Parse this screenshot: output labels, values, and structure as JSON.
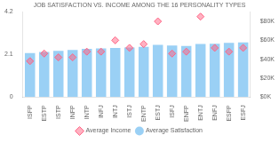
{
  "chart_data": {
    "type": "bar",
    "title": "JOB SATISFACTION VS. INCOME AMONG THE 16 PERSONALITY TYPES",
    "categories": [
      "ISFP",
      "ESTP",
      "ISTP",
      "INFP",
      "INTP",
      "INFJ",
      "INTJ",
      "ISTJ",
      "ENTP",
      "ESTJ",
      "ISFJ",
      "ENFP",
      "ENTJ",
      "ENFJ",
      "ESFP",
      "ESFJ"
    ],
    "series": [
      {
        "name": "Average Satisfaction",
        "type": "bar",
        "values": [
          2.17,
          2.22,
          2.28,
          2.32,
          2.38,
          2.4,
          2.42,
          2.44,
          2.48,
          2.58,
          2.54,
          2.52,
          2.62,
          2.63,
          2.67,
          2.7
        ]
      },
      {
        "name": "Average Income",
        "type": "scatter",
        "marker": "diamond",
        "axis": "y2",
        "values": [
          38000,
          46000,
          42000,
          42000,
          48000,
          48000,
          60000,
          52000,
          56000,
          80000,
          46000,
          48000,
          85000,
          52000,
          48000,
          52000
        ]
      }
    ],
    "ylim": [
      0,
      4.2
    ],
    "yticks": [
      0,
      2.1,
      4.2
    ],
    "y2lim": [
      0,
      90000
    ],
    "y2ticks": [
      {
        "value": 0,
        "label": "$0K"
      },
      {
        "value": 20000,
        "label": "$20K"
      },
      {
        "value": 40000,
        "label": "$40K"
      },
      {
        "value": 60000,
        "label": "$60K"
      },
      {
        "value": 80000,
        "label": "$80K"
      }
    ],
    "grid": false,
    "legend": "bottom"
  }
}
